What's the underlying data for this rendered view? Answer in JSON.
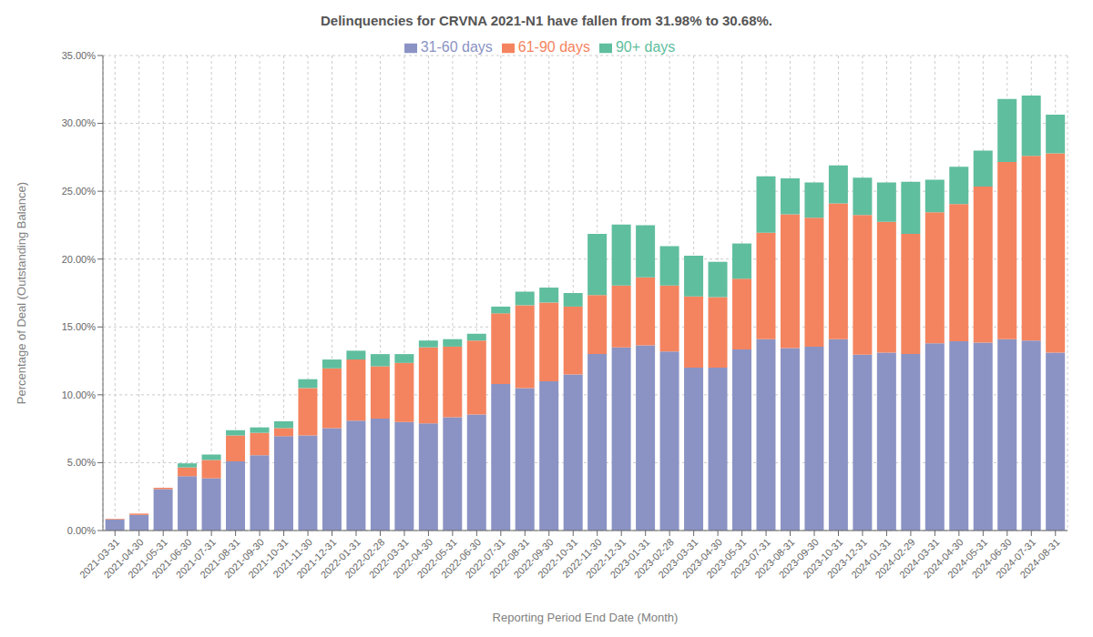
{
  "chart_data": {
    "type": "bar",
    "title": "Delinquencies for CRVNA 2021-N1 have fallen from 31.98% to 30.68%.",
    "xlabel": "Reporting Period End Date (Month)",
    "ylabel": "Percentage of Deal (Outstanding Balance)",
    "categories": [
      "2021-03-31",
      "2021-04-30",
      "2021-05-31",
      "2021-06-30",
      "2021-07-31",
      "2021-08-31",
      "2021-09-30",
      "2021-10-31",
      "2021-11-30",
      "2021-12-31",
      "2022-01-31",
      "2022-02-28",
      "2022-03-31",
      "2022-04-30",
      "2022-05-31",
      "2022-06-30",
      "2022-07-31",
      "2022-08-31",
      "2022-09-30",
      "2022-10-31",
      "2022-11-30",
      "2022-12-31",
      "2023-01-31",
      "2023-02-28",
      "2023-03-31",
      "2023-04-30",
      "2023-05-31",
      "2023-07-31",
      "2023-08-31",
      "2023-09-30",
      "2023-10-31",
      "2023-12-31",
      "2024-01-31",
      "2024-02-29",
      "2024-03-31",
      "2024-04-30",
      "2024-05-31",
      "2024-06-30",
      "2024-07-31",
      "2024-08-31"
    ],
    "series": [
      {
        "name": "31-60 days",
        "color": "#8b93c4",
        "values": [
          0.8,
          1.15,
          3.05,
          4.0,
          3.85,
          5.1,
          5.55,
          6.95,
          7.0,
          7.55,
          8.1,
          8.25,
          8.0,
          7.9,
          8.35,
          8.55,
          10.8,
          10.5,
          11.0,
          11.5,
          13.0,
          13.5,
          13.65,
          13.2,
          12.0,
          12.0,
          13.35,
          14.1,
          13.45,
          13.55,
          14.1,
          12.95,
          13.1,
          13.0,
          13.8,
          13.95,
          13.85,
          14.1,
          14.0,
          13.1
        ]
      },
      {
        "name": "61-90 days",
        "color": "#f4845f",
        "values": [
          0.05,
          0.1,
          0.1,
          0.65,
          1.35,
          1.9,
          1.65,
          0.6,
          3.5,
          4.4,
          4.5,
          3.85,
          4.35,
          5.6,
          5.2,
          5.45,
          5.2,
          6.1,
          5.8,
          5.0,
          4.35,
          4.55,
          5.0,
          4.85,
          5.25,
          5.2,
          5.2,
          7.85,
          9.85,
          9.5,
          10.0,
          10.3,
          9.65,
          8.85,
          9.65,
          10.1,
          11.5,
          13.05,
          13.6,
          14.7
        ]
      },
      {
        "name": "90+ days",
        "color": "#5fbe9e",
        "values": [
          0.0,
          0.0,
          0.0,
          0.3,
          0.4,
          0.4,
          0.4,
          0.5,
          0.65,
          0.65,
          0.65,
          0.9,
          0.65,
          0.5,
          0.55,
          0.5,
          0.5,
          1.0,
          1.1,
          1.0,
          4.5,
          4.5,
          3.85,
          2.9,
          3.0,
          2.6,
          2.6,
          4.15,
          2.65,
          2.6,
          2.8,
          2.75,
          2.9,
          3.85,
          2.4,
          2.75,
          2.65,
          4.65,
          4.45,
          2.85
        ]
      }
    ],
    "stacked": true,
    "ylim": [
      0,
      35
    ],
    "yticks": [
      {
        "value": 0,
        "label": "0.00%"
      },
      {
        "value": 5,
        "label": "5.00%"
      },
      {
        "value": 10,
        "label": "10.00%"
      },
      {
        "value": 15,
        "label": "15.00%"
      },
      {
        "value": 20,
        "label": "20.00%"
      },
      {
        "value": 25,
        "label": "25.00%"
      },
      {
        "value": 30,
        "label": "30.00%"
      },
      {
        "value": 35,
        "label": "35.00%"
      }
    ],
    "grid": true,
    "legend": "top"
  }
}
